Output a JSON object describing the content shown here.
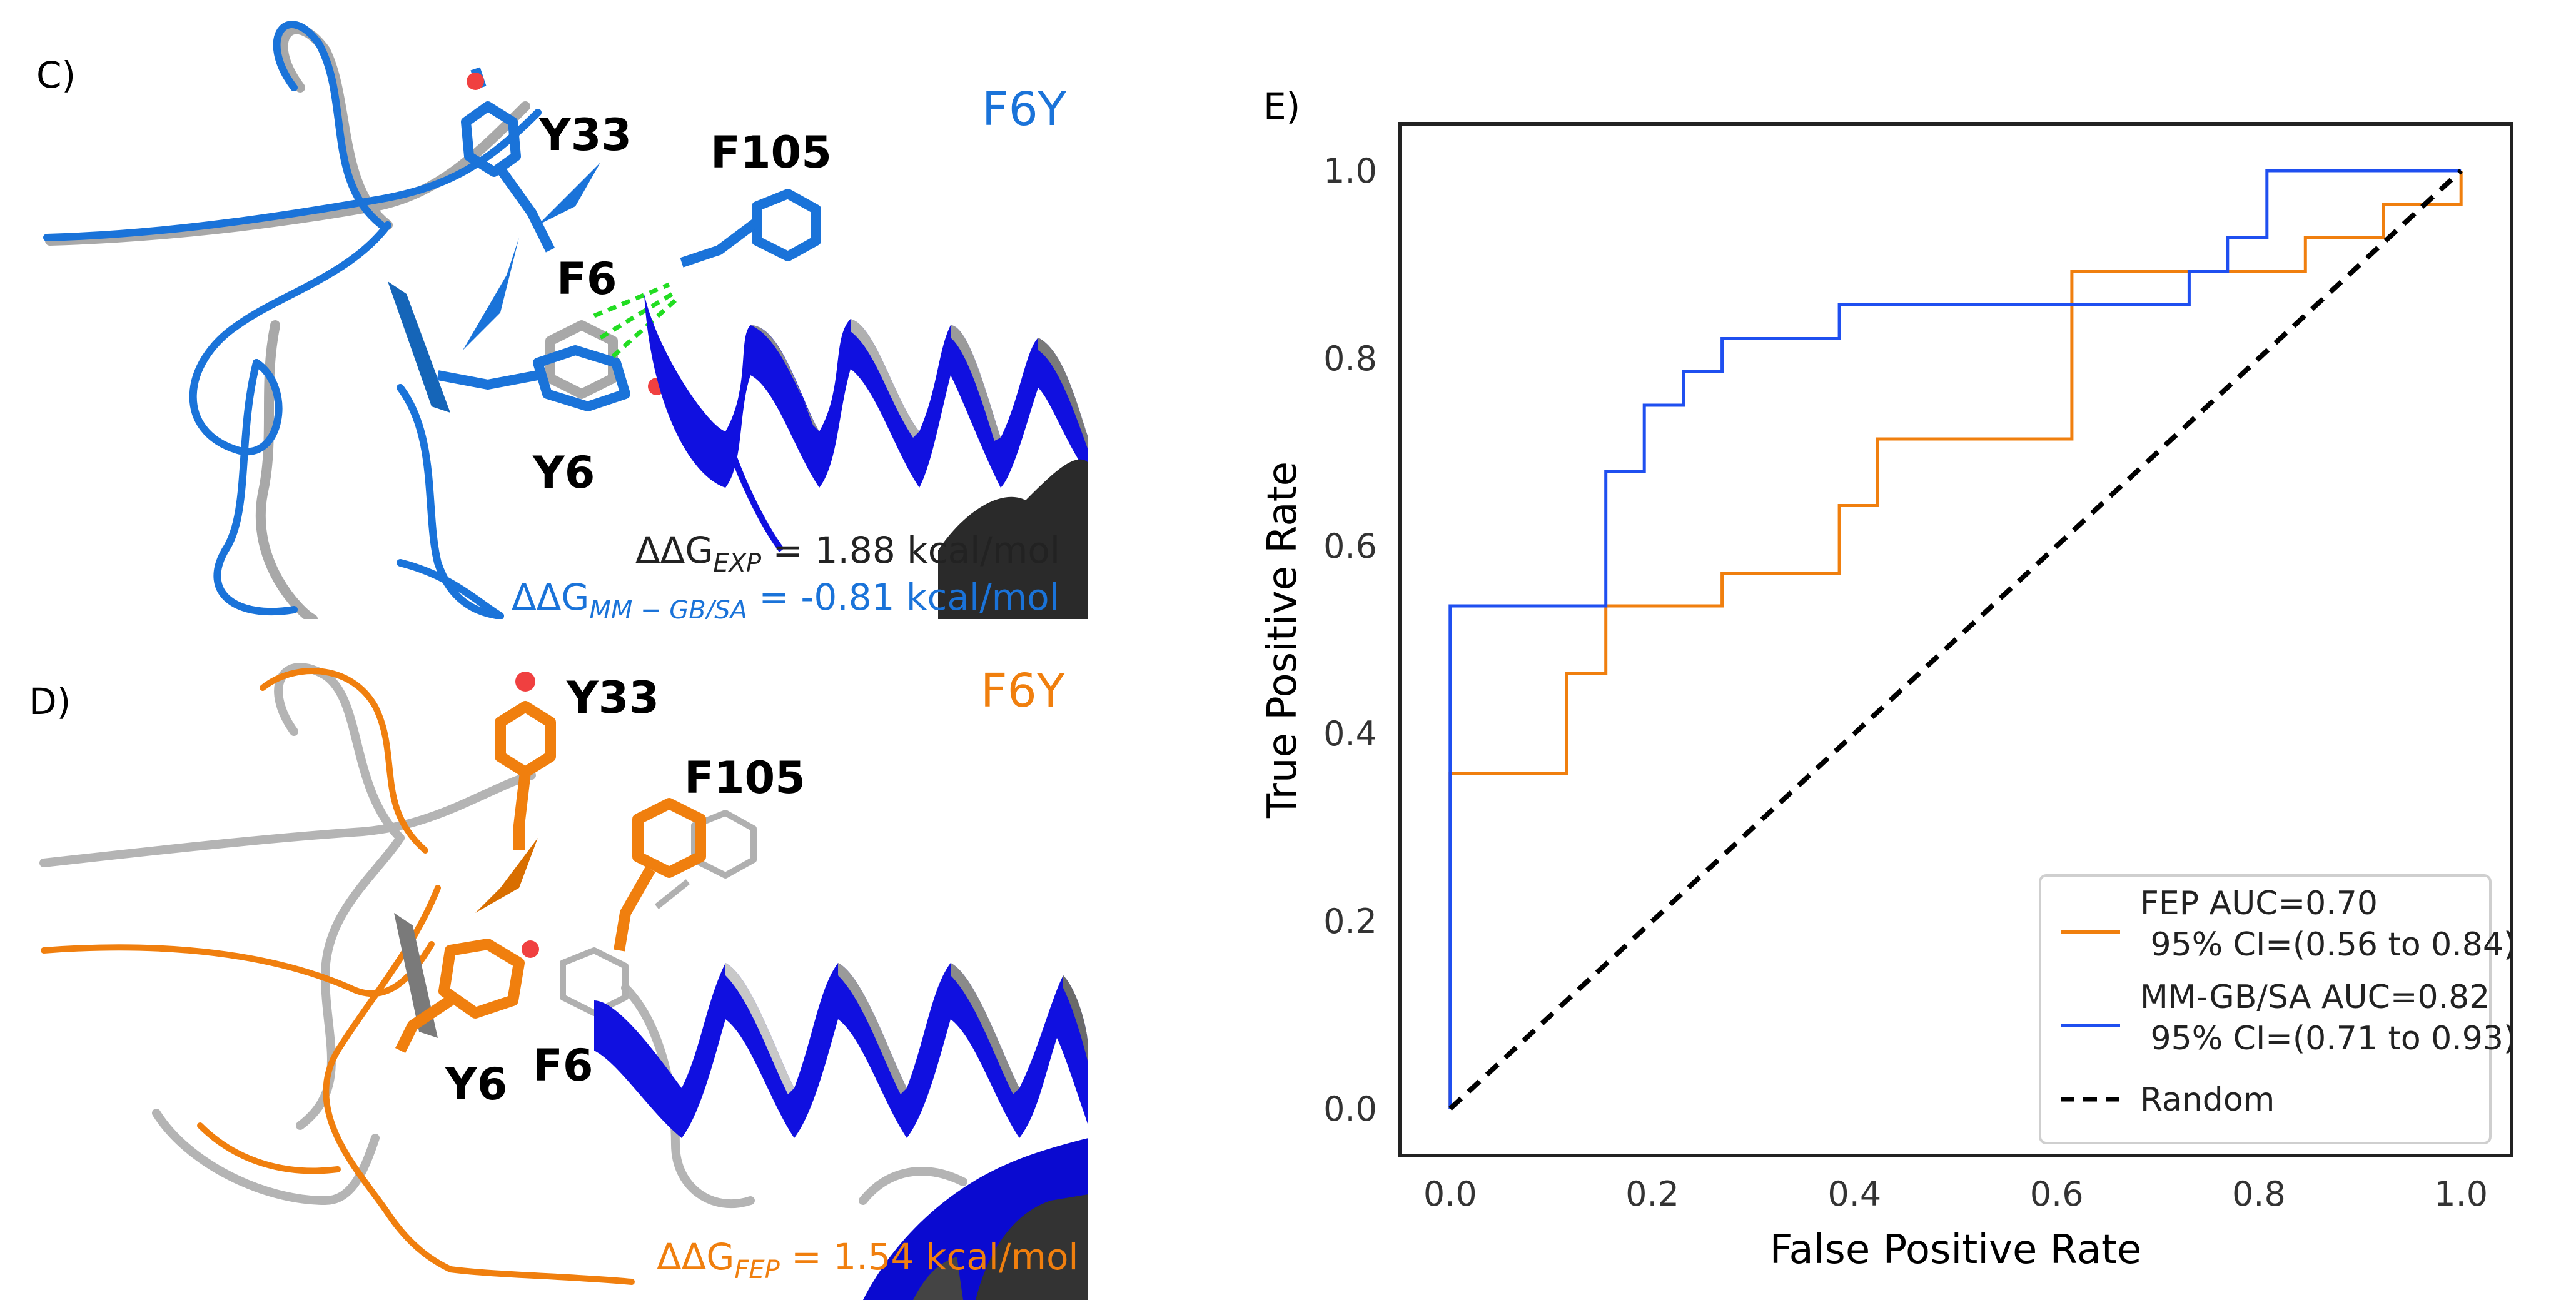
{
  "panel_c": {
    "letter": "C)",
    "mutation": "F6Y",
    "residues": {
      "y33": "Y33",
      "f105": "F105",
      "f6": "F6",
      "y6": "Y6"
    },
    "ddg_exp": {
      "prefix": "ΔΔG",
      "sub": "EXP",
      "value": " = 1.88 kcal/mol"
    },
    "ddg_mm": {
      "prefix": "ΔΔG",
      "sub": "MM − GB/SA",
      "value": " = -0.81 kcal/mol"
    },
    "colors": {
      "blue": "#1a73d9",
      "dark_blue": "#1010e0"
    }
  },
  "panel_d": {
    "letter": "D)",
    "mutation": "F6Y",
    "residues": {
      "y33": "Y33",
      "f105": "F105",
      "f6": "F6",
      "y6": "Y6"
    },
    "ddg_fep": {
      "prefix": "ΔΔG",
      "sub": "FEP",
      "value": " = 1.54 kcal/mol"
    },
    "colors": {
      "orange": "#f07f0e"
    }
  },
  "panel_e": {
    "letter": "E)"
  },
  "chart_data": {
    "type": "line",
    "title": "",
    "xlabel": "False Positive Rate",
    "ylabel": "True Positive Rate",
    "xlim": [
      -0.05,
      1.05
    ],
    "ylim": [
      -0.05,
      1.05
    ],
    "xticks": [
      "0.0",
      "0.2",
      "0.4",
      "0.6",
      "0.8",
      "1.0"
    ],
    "yticks": [
      "0.0",
      "0.2",
      "0.4",
      "0.6",
      "0.8",
      "1.0"
    ],
    "grid": false,
    "legend_position": "lower-right",
    "series": [
      {
        "name": "FEP",
        "legend_line1": "FEP AUC=0.70",
        "legend_line2": " 95% CI=(0.56 to 0.84)",
        "color": "#f07f0e",
        "style": "step",
        "x": [
          0.0,
          0.0,
          0.115,
          0.115,
          0.154,
          0.154,
          0.269,
          0.269,
          0.385,
          0.385,
          0.423,
          0.423,
          0.615,
          0.615,
          0.769,
          0.769,
          0.846,
          0.846,
          0.923,
          0.923,
          1.0,
          1.0
        ],
        "y": [
          0.0,
          0.357,
          0.357,
          0.464,
          0.464,
          0.536,
          0.536,
          0.571,
          0.571,
          0.643,
          0.643,
          0.714,
          0.714,
          0.893,
          0.893,
          0.893,
          0.893,
          0.929,
          0.929,
          0.964,
          0.964,
          1.0
        ]
      },
      {
        "name": "MM-GB/SA",
        "legend_line1": "MM-GB/SA AUC=0.82",
        "legend_line2": " 95% CI=(0.71 to 0.93)",
        "color": "#1f4ff0",
        "style": "step",
        "x": [
          0.0,
          0.0,
          0.154,
          0.154,
          0.192,
          0.192,
          0.231,
          0.231,
          0.269,
          0.269,
          0.385,
          0.385,
          0.731,
          0.731,
          0.769,
          0.769,
          0.808,
          0.808,
          1.0
        ],
        "y": [
          0.0,
          0.536,
          0.536,
          0.679,
          0.679,
          0.75,
          0.75,
          0.786,
          0.786,
          0.821,
          0.821,
          0.857,
          0.857,
          0.893,
          0.893,
          0.929,
          0.929,
          1.0,
          1.0
        ]
      },
      {
        "name": "Random",
        "legend_line1": "Random",
        "color": "#000000",
        "style": "dashed",
        "x": [
          0.0,
          1.0
        ],
        "y": [
          0.0,
          1.0
        ]
      }
    ]
  }
}
